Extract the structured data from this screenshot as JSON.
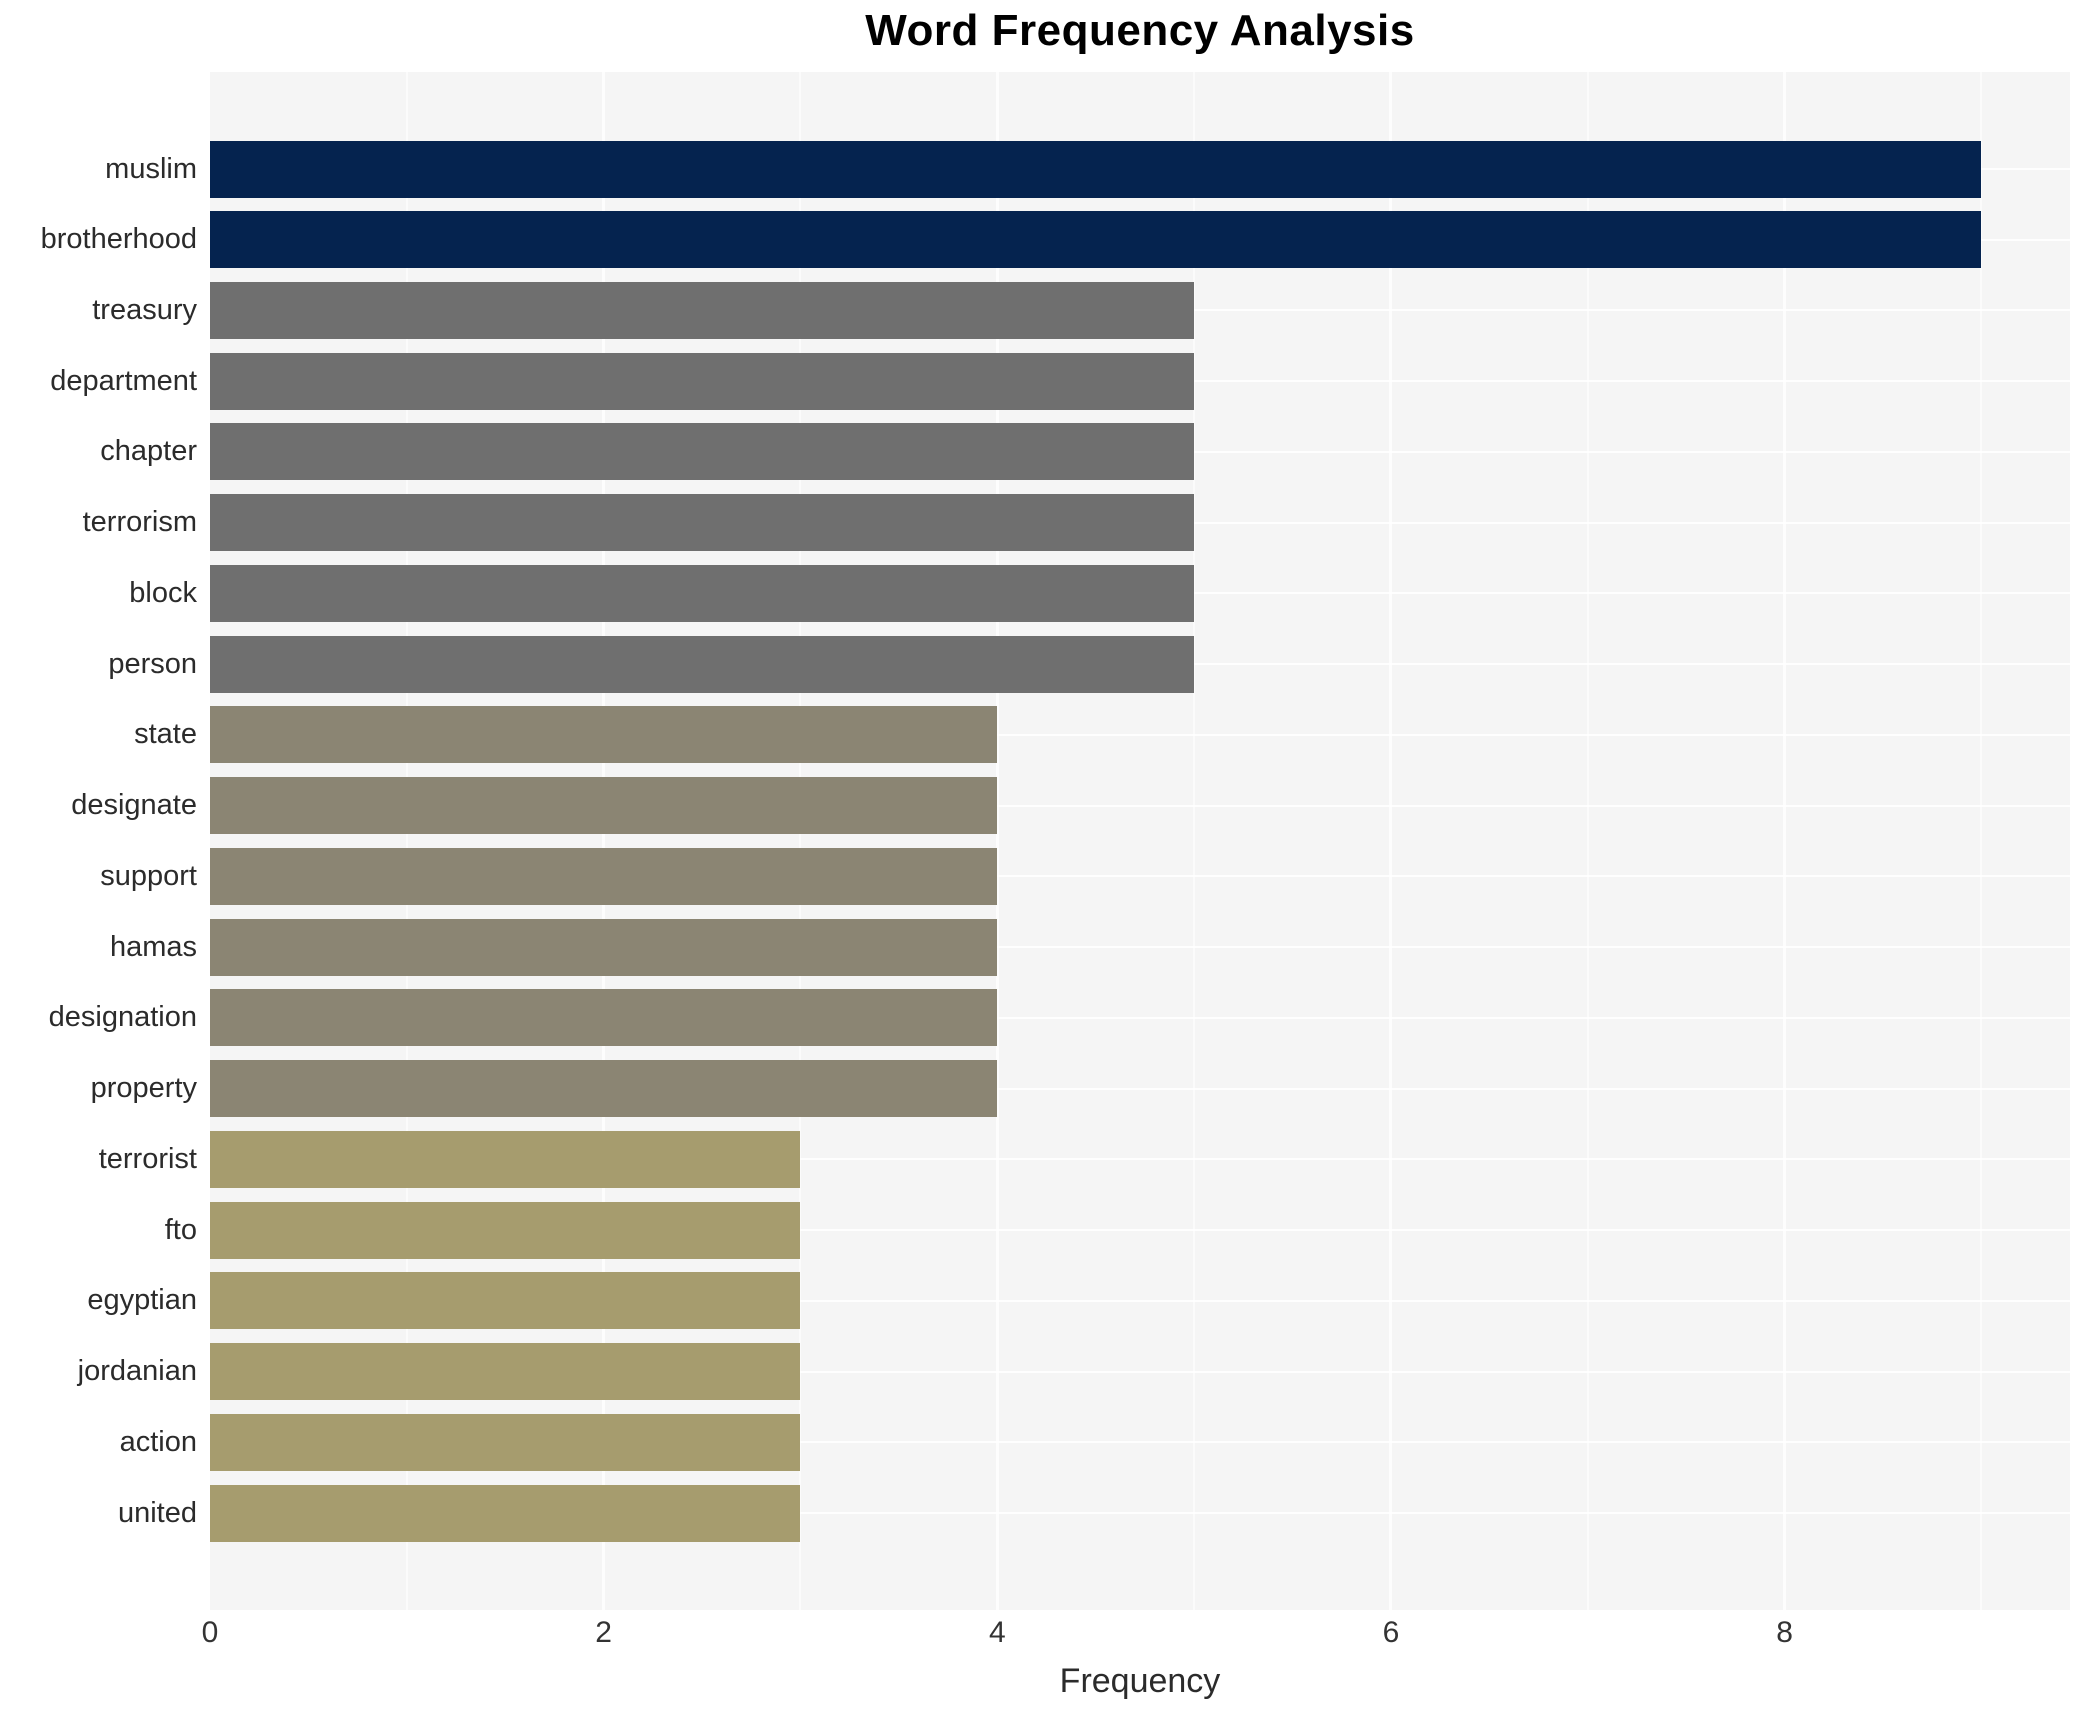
{
  "chart_data": {
    "type": "bar",
    "orientation": "horizontal",
    "title": "Word Frequency Analysis",
    "xlabel": "Frequency",
    "ylabel": "",
    "categories": [
      "muslim",
      "brotherhood",
      "treasury",
      "department",
      "chapter",
      "terrorism",
      "block",
      "person",
      "state",
      "designate",
      "support",
      "hamas",
      "designation",
      "property",
      "terrorist",
      "fto",
      "egyptian",
      "jordanian",
      "action",
      "united"
    ],
    "values": [
      9,
      9,
      5,
      5,
      5,
      5,
      5,
      5,
      4,
      4,
      4,
      4,
      4,
      4,
      3,
      3,
      3,
      3,
      3,
      3
    ],
    "bar_colors": [
      "#05234f",
      "#05234f",
      "#6f6f6f",
      "#6f6f6f",
      "#6f6f6f",
      "#6f6f6f",
      "#6f6f6f",
      "#6f6f6f",
      "#8b8573",
      "#8b8573",
      "#8b8573",
      "#8b8573",
      "#8b8573",
      "#8b8573",
      "#a69c6e",
      "#a69c6e",
      "#a69c6e",
      "#a69c6e",
      "#a69c6e",
      "#a69c6e"
    ],
    "xlim": [
      0,
      9.45
    ],
    "xticks": [
      0,
      2,
      4,
      6,
      8
    ],
    "xminorticks": [
      1,
      3,
      5,
      7,
      9
    ],
    "legend_position": "none",
    "grid": {
      "vertical_major": true,
      "vertical_minor": true,
      "horizontal_category": true
    },
    "panel_background": "#f5f5f5",
    "text_color": "#2b2b2b",
    "title_color": "#000000"
  }
}
